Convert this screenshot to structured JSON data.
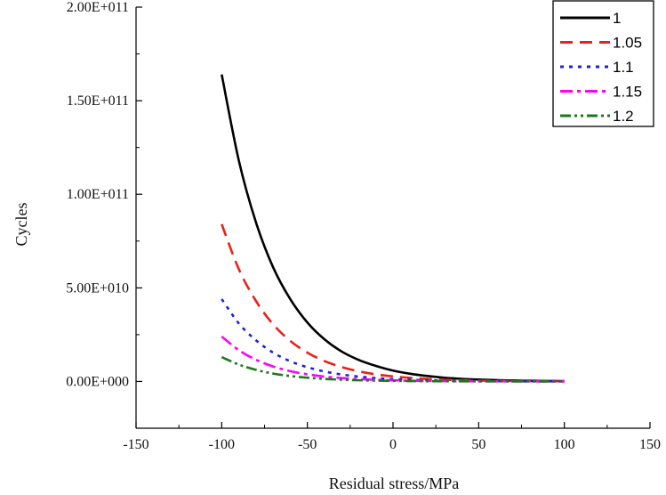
{
  "chart_data": {
    "type": "line",
    "title": "",
    "xlabel": "Residual stress/MPa",
    "ylabel": "Cycles",
    "xlim": [
      -150,
      150
    ],
    "ylim": [
      -25000000000,
      200000000000
    ],
    "x_ticks": [
      {
        "value": -150,
        "label": "-150"
      },
      {
        "value": -100,
        "label": "-100"
      },
      {
        "value": -50,
        "label": "-50"
      },
      {
        "value": 0,
        "label": "0"
      },
      {
        "value": 50,
        "label": "50"
      },
      {
        "value": 100,
        "label": "100"
      },
      {
        "value": 150,
        "label": "150"
      }
    ],
    "y_ticks": [
      {
        "value": 0,
        "label": "0.00E+000"
      },
      {
        "value": 50000000000,
        "label": "5.00E+010"
      },
      {
        "value": 100000000000,
        "label": "1.00E+011"
      },
      {
        "value": 150000000000,
        "label": "1.50E+011"
      },
      {
        "value": 200000000000,
        "label": "2.00E+011"
      }
    ],
    "grid": false,
    "legend_position": "top-right",
    "x": [
      -100,
      -90,
      -80,
      -70,
      -60,
      -50,
      -40,
      -30,
      -20,
      -10,
      0,
      10,
      20,
      30,
      40,
      50,
      60,
      70,
      80,
      90,
      100
    ],
    "series": [
      {
        "name": "1",
        "color": "#000000",
        "dash": "solid",
        "values": [
          164000000000,
          118000000000,
          85000000000,
          61000000000,
          44000000000,
          31500000000,
          22500000000,
          16000000000,
          11500000000,
          8300000000,
          5800000000,
          4100000000,
          2900000000,
          2000000000,
          1400000000,
          1000000000,
          700000000,
          500000000,
          350000000,
          250000000,
          180000000
        ]
      },
      {
        "name": "1.05",
        "color": "#e8211c",
        "dash": "dashed",
        "values": [
          84000000000,
          60000000000,
          43000000000,
          30500000000,
          21700000000,
          15400000000,
          10900000000,
          7700000000,
          5400000000,
          3800000000,
          2700000000,
          1900000000,
          1300000000,
          900000000,
          650000000,
          450000000,
          320000000,
          220000000,
          150000000,
          110000000,
          80000000
        ]
      },
      {
        "name": "1.1",
        "color": "#1f1fe0",
        "dash": "dotted",
        "values": [
          44000000000,
          31000000000,
          22000000000,
          15400000000,
          10800000000,
          7600000000,
          5300000000,
          3700000000,
          2600000000,
          1800000000,
          1250000000,
          870000000,
          600000000,
          420000000,
          290000000,
          200000000,
          140000000,
          100000000,
          70000000,
          50000000,
          35000000
        ]
      },
      {
        "name": "1.15",
        "color": "#ff00ff",
        "dash": "dash-dot",
        "values": [
          24000000000,
          16700000000,
          11600000000,
          8000000000,
          5500000000,
          3800000000,
          2600000000,
          1800000000,
          1250000000,
          860000000,
          590000000,
          400000000,
          280000000,
          190000000,
          130000000,
          90000000,
          60000000,
          42000000,
          29000000,
          20000000,
          14000000
        ]
      },
      {
        "name": "1.2",
        "color": "#1a7a1a",
        "dash": "dash-dot-dot",
        "values": [
          13000000000,
          9000000000,
          6200000000,
          4200000000,
          2900000000,
          2000000000,
          1350000000,
          920000000,
          630000000,
          430000000,
          290000000,
          200000000,
          135000000,
          92000000,
          63000000,
          43000000,
          29000000,
          20000000,
          14000000,
          9000000,
          6000000
        ]
      }
    ]
  }
}
